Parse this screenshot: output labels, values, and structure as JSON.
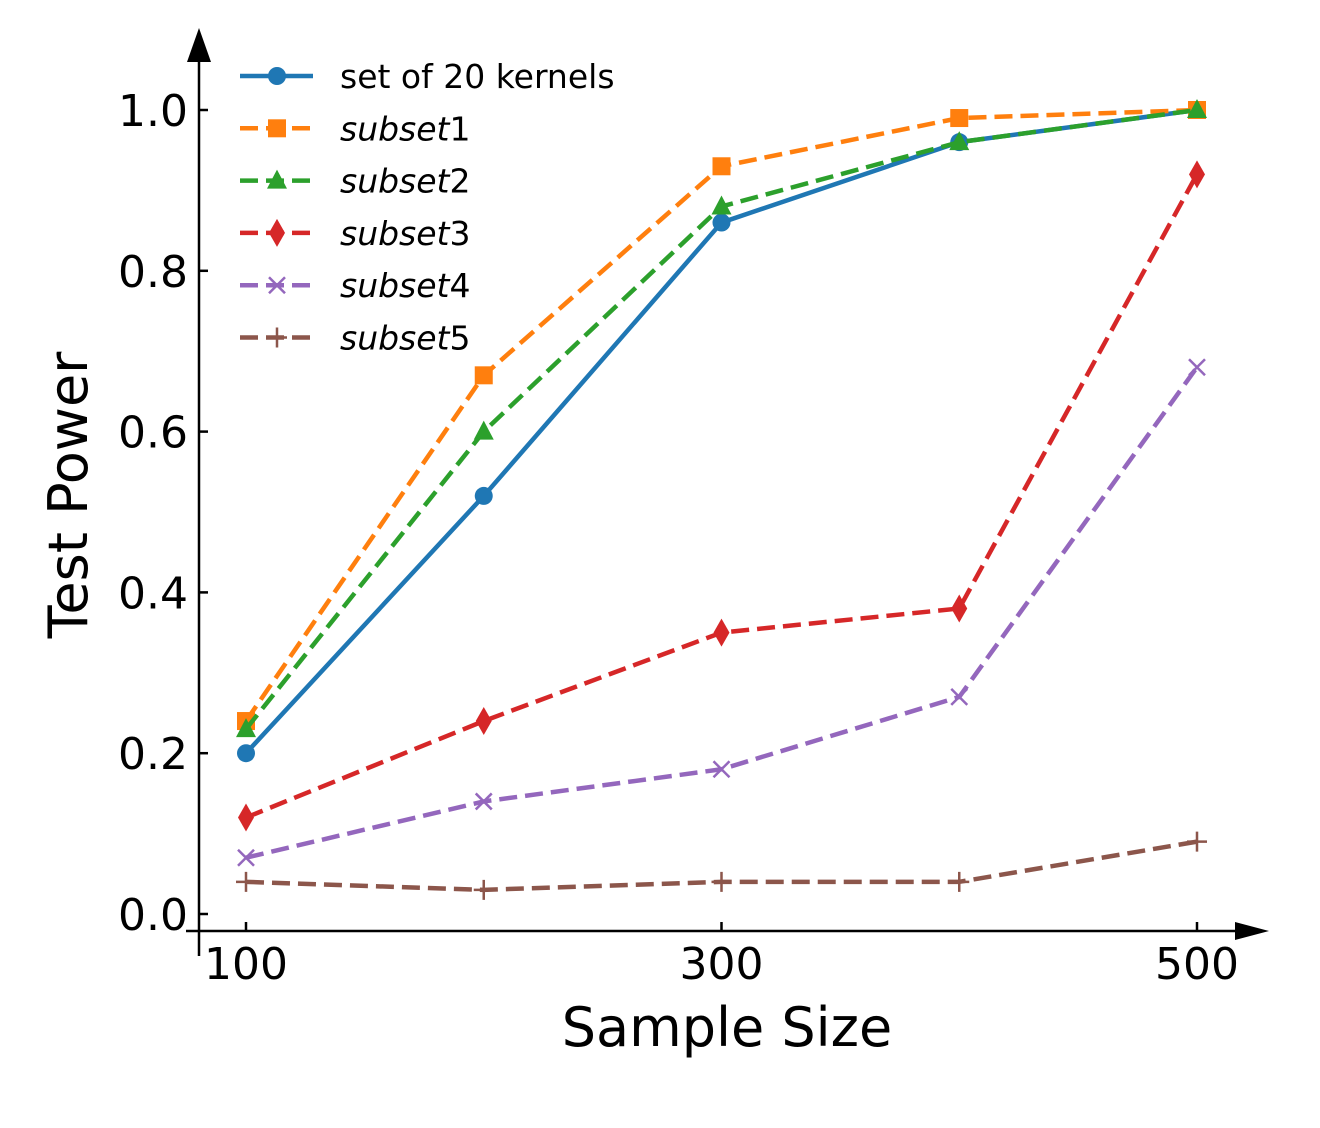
{
  "chart_data": {
    "type": "line",
    "title": "",
    "xlabel": "Sample Size",
    "ylabel": "Test Power",
    "x": [
      100,
      200,
      300,
      400,
      500
    ],
    "xlim": [
      85,
      515
    ],
    "ylim": [
      -0.02,
      1.08
    ],
    "xticks": [
      100,
      300,
      500
    ],
    "xtick_labels": [
      "100",
      "300",
      "500"
    ],
    "yticks": [
      0.0,
      0.2,
      0.4,
      0.6,
      0.8,
      1.0
    ],
    "ytick_labels": [
      "0.0",
      "0.2",
      "0.4",
      "0.6",
      "0.8",
      "1.0"
    ],
    "grid": false,
    "legend_position": "top-left",
    "series": [
      {
        "name": "set of 20 kernels",
        "name_base": "set of 20 kernels",
        "name_suffix": "",
        "italic": false,
        "color": "#1f77b4",
        "linestyle": "solid",
        "marker": "circle",
        "values": [
          0.2,
          0.52,
          0.86,
          0.96,
          1.0
        ]
      },
      {
        "name": "subset1",
        "name_base": "subset",
        "name_suffix": "1",
        "italic": true,
        "color": "#ff7f0e",
        "linestyle": "dashed",
        "marker": "square",
        "values": [
          0.24,
          0.67,
          0.93,
          0.99,
          1.0
        ]
      },
      {
        "name": "subset2",
        "name_base": "subset",
        "name_suffix": "2",
        "italic": true,
        "color": "#2ca02c",
        "linestyle": "dashed",
        "marker": "triangle",
        "values": [
          0.23,
          0.6,
          0.88,
          0.96,
          1.0
        ]
      },
      {
        "name": "subset3",
        "name_base": "subset",
        "name_suffix": "3",
        "italic": true,
        "color": "#d62728",
        "linestyle": "dashed",
        "marker": "diamond",
        "values": [
          0.12,
          0.24,
          0.35,
          0.38,
          0.92
        ]
      },
      {
        "name": "subset4",
        "name_base": "subset",
        "name_suffix": "4",
        "italic": true,
        "color": "#9467bd",
        "linestyle": "dashed",
        "marker": "x",
        "values": [
          0.07,
          0.14,
          0.18,
          0.27,
          0.68
        ]
      },
      {
        "name": "subset5",
        "name_base": "subset",
        "name_suffix": "5",
        "italic": true,
        "color": "#8c564b",
        "linestyle": "dashed",
        "marker": "plus",
        "values": [
          0.04,
          0.03,
          0.04,
          0.04,
          0.09
        ]
      }
    ]
  }
}
